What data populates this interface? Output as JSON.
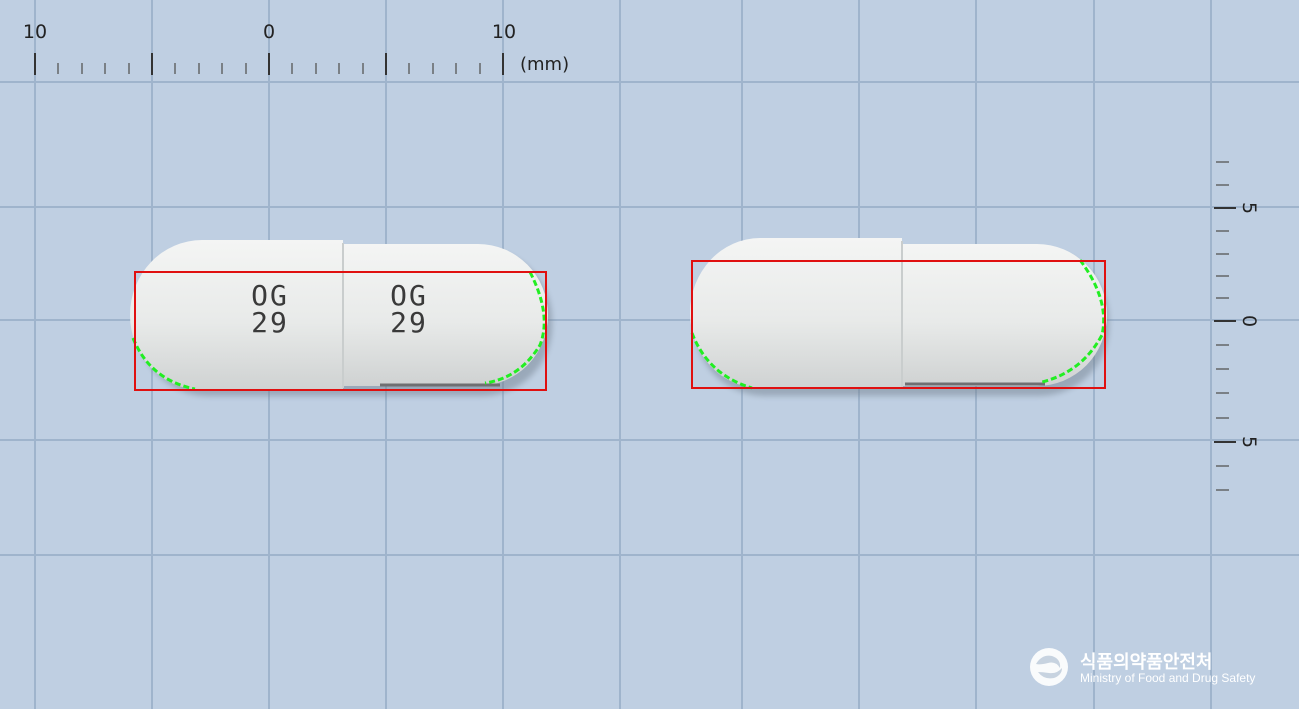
{
  "ruler_top": {
    "tick_labels": [
      "10",
      "0",
      "10"
    ],
    "unit": "(mm)"
  },
  "ruler_right": {
    "tick_labels": [
      "5",
      "0",
      "5"
    ]
  },
  "capsules": [
    {
      "imprint_left": [
        "OG",
        "29"
      ],
      "imprint_right": [
        "OG",
        "29"
      ]
    },
    {
      "imprint_left": [],
      "imprint_right": []
    }
  ],
  "colors": {
    "background": "#bfcfe2",
    "grid": "#9fb4cc",
    "capsule": "#e9ebea",
    "bounding_box": "#e01010",
    "contour": "#22ee22"
  },
  "logo": {
    "name_ko": "식품의약품안전처",
    "name_en": "Ministry of Food and Drug Safety"
  }
}
